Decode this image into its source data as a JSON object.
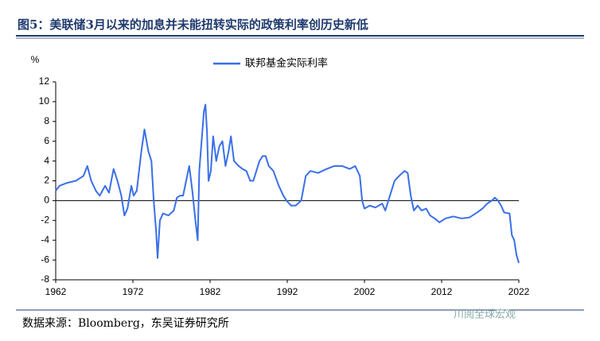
{
  "chart_data": {
    "type": "line",
    "title": "图5：美联储3月以来的加息并未能扭转实际的政策利率创历史新低",
    "y_label": "%",
    "source": "数据来源：Bloomberg，东吴证券研究所",
    "watermark": "川阅全球宏观",
    "legend": "top",
    "grid": false,
    "xlim": [
      1962,
      2022
    ],
    "xticks": [
      1962,
      1972,
      1982,
      1992,
      2002,
      2012,
      2022
    ],
    "ylim": [
      -8,
      12
    ],
    "yticks": [
      -8,
      -6,
      -4,
      -2,
      0,
      2,
      4,
      6,
      8,
      10,
      12
    ],
    "x": [
      1962.0,
      1962.5,
      1963.5,
      1964.6,
      1965.6,
      1966.1,
      1966.6,
      1967.2,
      1967.7,
      1968.4,
      1968.9,
      1969.5,
      1970.0,
      1970.5,
      1970.9,
      1971.3,
      1971.8,
      1972.1,
      1972.5,
      1973.1,
      1973.5,
      1974.0,
      1974.4,
      1974.7,
      1975.0,
      1975.2,
      1975.5,
      1975.9,
      1976.6,
      1977.3,
      1977.7,
      1978.1,
      1978.5,
      1978.9,
      1979.3,
      1979.7,
      1980.1,
      1980.4,
      1980.6,
      1980.9,
      1981.2,
      1981.4,
      1981.6,
      1981.8,
      1982.1,
      1982.4,
      1982.8,
      1983.2,
      1983.6,
      1984.0,
      1984.4,
      1984.7,
      1985.1,
      1985.7,
      1986.2,
      1986.7,
      1987.2,
      1987.6,
      1988.0,
      1988.4,
      1988.8,
      1989.2,
      1989.6,
      1990.2,
      1990.9,
      1991.5,
      1991.9,
      1992.5,
      1993.1,
      1993.8,
      1994.4,
      1995.0,
      1996.0,
      1997.1,
      1998.1,
      1999.1,
      2000.1,
      2000.8,
      2001.4,
      2001.7,
      2002.0,
      2002.7,
      2003.4,
      2004.3,
      2004.7,
      2005.3,
      2005.9,
      2006.5,
      2007.2,
      2007.6,
      2008.0,
      2008.4,
      2008.9,
      2009.4,
      2010.0,
      2010.5,
      2011.1,
      2011.7,
      2012.5,
      2013.5,
      2014.6,
      2015.6,
      2016.6,
      2017.3,
      2017.9,
      2018.5,
      2018.9,
      2019.3,
      2019.7,
      2020.1,
      2020.8,
      2021.1,
      2021.4,
      2021.7,
      2022.0
    ],
    "series": [
      {
        "name": "联邦基金实际利率",
        "color": "#3a6fe8",
        "values": [
          1.0,
          1.5,
          1.8,
          2.0,
          2.5,
          3.5,
          2.0,
          1.0,
          0.5,
          1.5,
          0.8,
          3.2,
          2.0,
          0.5,
          -1.5,
          -0.8,
          1.5,
          0.5,
          1.0,
          5.0,
          7.2,
          5.0,
          4.0,
          0.0,
          -3.0,
          -5.8,
          -2.0,
          -1.3,
          -1.5,
          -1.0,
          0.3,
          0.5,
          0.5,
          2.0,
          3.5,
          1.0,
          -2.0,
          -4.0,
          3.0,
          6.0,
          9.0,
          9.7,
          7.0,
          2.0,
          3.0,
          6.5,
          4.0,
          5.5,
          6.0,
          3.5,
          5.0,
          6.5,
          4.0,
          3.5,
          3.2,
          3.0,
          2.0,
          2.0,
          3.0,
          4.0,
          4.5,
          4.5,
          3.5,
          3.0,
          1.5,
          0.5,
          0.0,
          -0.5,
          -0.5,
          0.0,
          2.5,
          3.0,
          2.8,
          3.2,
          3.5,
          3.5,
          3.2,
          3.5,
          2.5,
          0.0,
          -0.8,
          -0.5,
          -0.7,
          -0.3,
          -1.0,
          0.5,
          2.0,
          2.5,
          3.0,
          2.8,
          0.5,
          -1.0,
          -0.5,
          -1.0,
          -0.8,
          -1.5,
          -1.8,
          -2.2,
          -1.8,
          -1.6,
          -1.8,
          -1.7,
          -1.2,
          -0.8,
          -0.3,
          0.0,
          0.3,
          0.0,
          -0.5,
          -1.2,
          -1.3,
          -3.5,
          -4.0,
          -5.5,
          -6.3
        ]
      }
    ]
  }
}
